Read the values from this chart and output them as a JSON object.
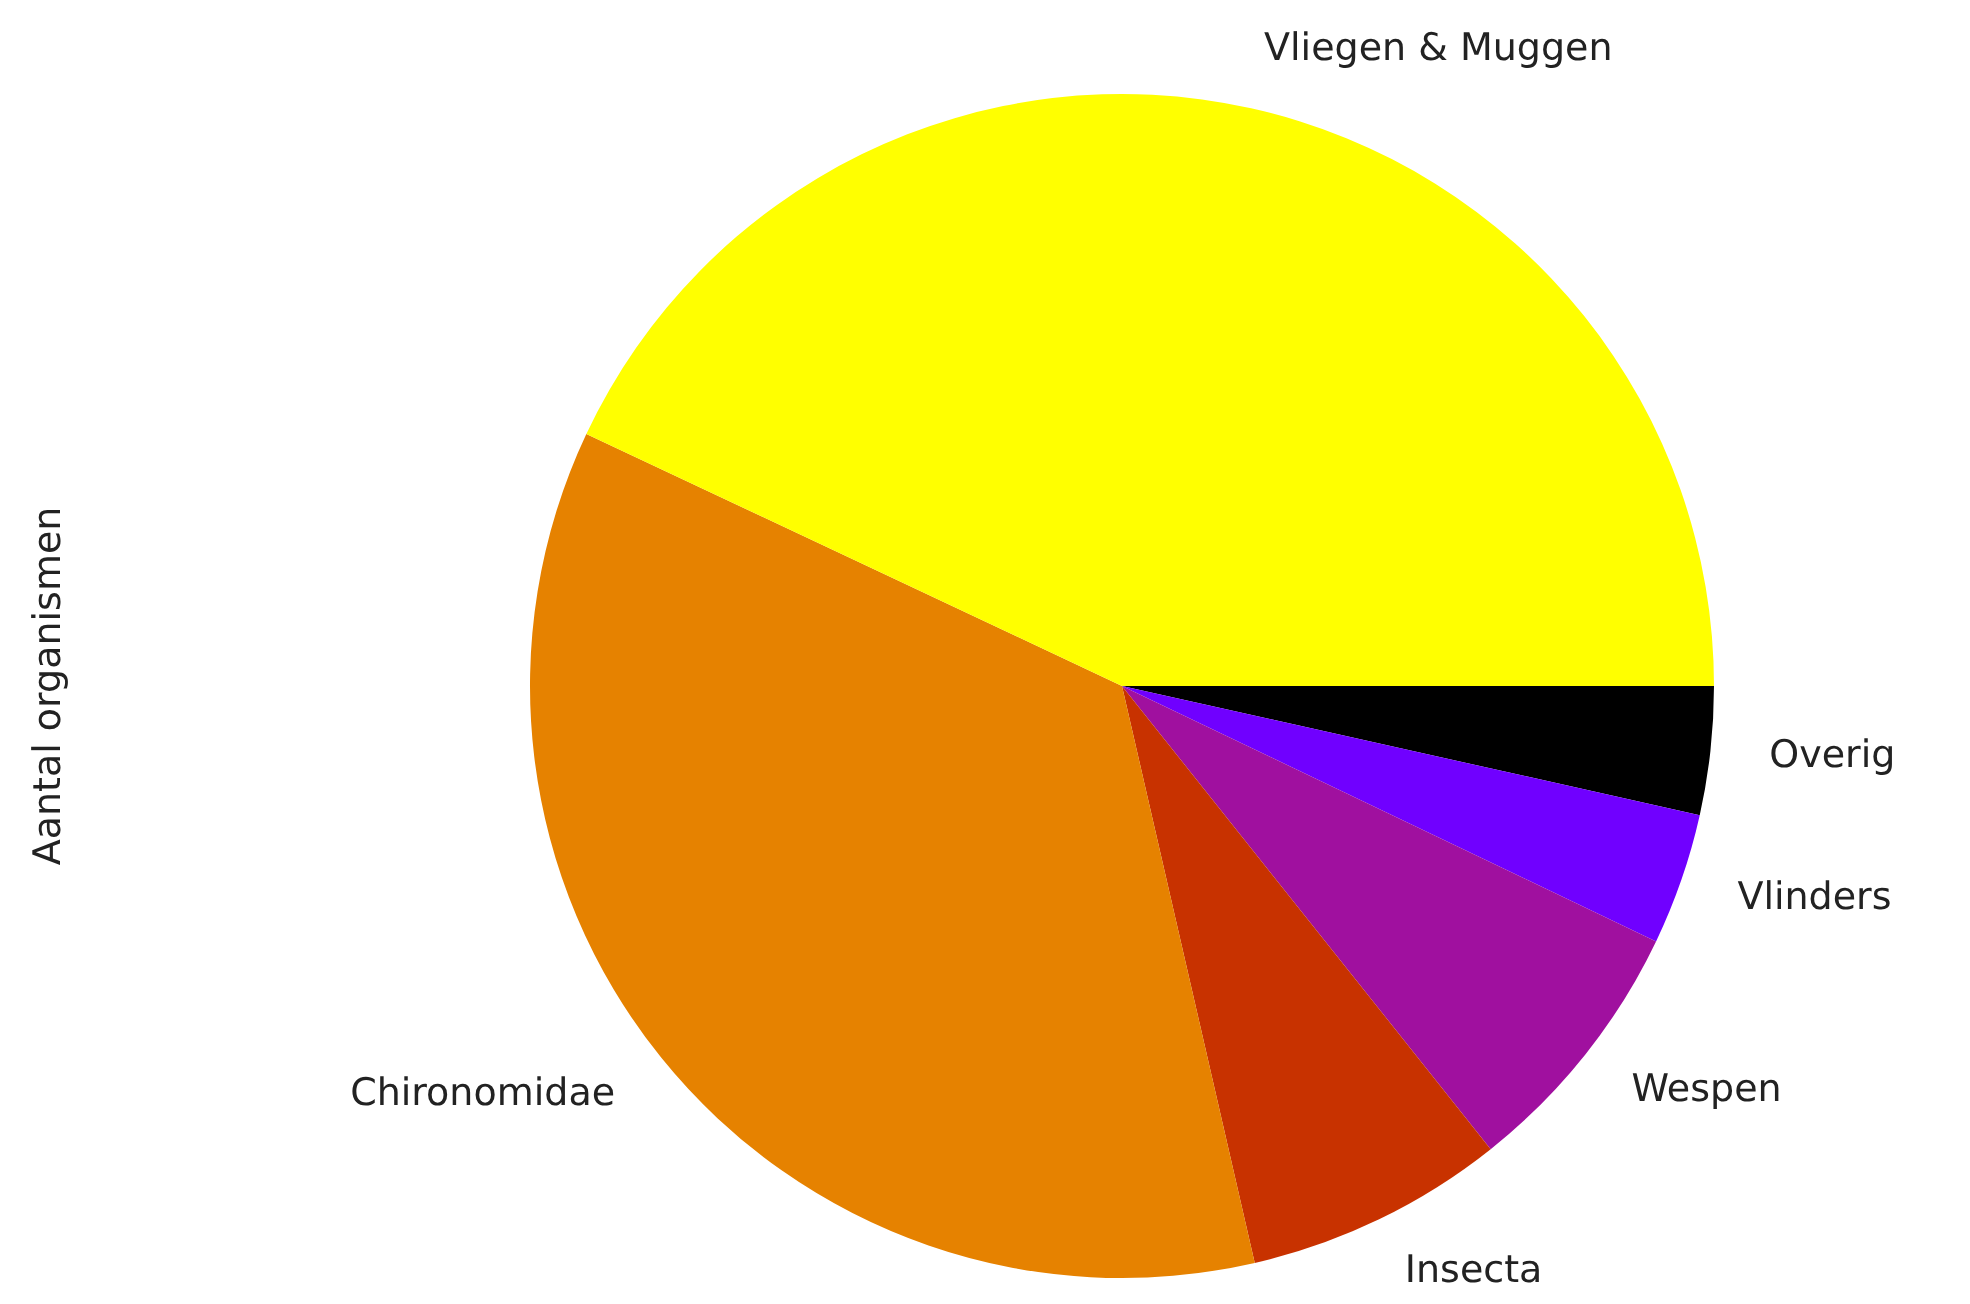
{
  "chart_data": {
    "type": "pie",
    "ylabel": "Aantal organismen",
    "categories": [
      "Vliegen & Muggen",
      "Chironomidae",
      "Insecta",
      "Wespen",
      "Vlinders",
      "Overig"
    ],
    "values": [
      43.0,
      35.6,
      7.1,
      7.2,
      3.6,
      3.5
    ],
    "colors": [
      "#ffff00",
      "#e68200",
      "#c83200",
      "#a0109f",
      "#7000ff",
      "#000000"
    ]
  }
}
